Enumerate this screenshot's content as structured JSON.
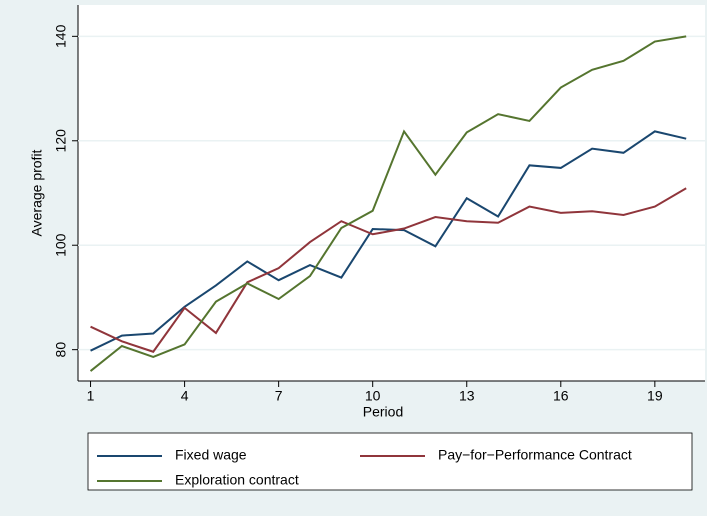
{
  "chart_data": {
    "type": "line",
    "x_label": "Period",
    "y_label": "Average profit",
    "x": [
      1,
      2,
      3,
      4,
      5,
      6,
      7,
      8,
      9,
      10,
      11,
      12,
      13,
      14,
      15,
      16,
      17,
      18,
      19,
      20
    ],
    "xlim": [
      0.6,
      20.6
    ],
    "xticks": [
      1,
      4,
      7,
      10,
      13,
      16,
      19
    ],
    "ylim": [
      74,
      146
    ],
    "yticks": [
      80,
      100,
      120,
      140
    ],
    "grid": true,
    "series": [
      {
        "name": "Fixed wage",
        "color": "#1a476f",
        "values": [
          79.8,
          82.7,
          83.1,
          88.2,
          92.3,
          96.9,
          93.3,
          96.2,
          93.8,
          103.1,
          102.9,
          99.8,
          109.0,
          105.5,
          115.3,
          114.8,
          118.5,
          117.7,
          121.8,
          120.4
        ]
      },
      {
        "name": "Pay−for−Performance Contract",
        "color": "#90353b",
        "values": [
          84.4,
          81.6,
          79.6,
          88.0,
          83.2,
          92.9,
          95.6,
          100.6,
          104.6,
          102.1,
          103.2,
          105.4,
          104.6,
          104.3,
          107.4,
          106.2,
          106.5,
          105.8,
          107.4,
          110.9
        ]
      },
      {
        "name": "Exploration contract",
        "color": "#55752f",
        "values": [
          75.9,
          80.7,
          78.6,
          81.0,
          89.2,
          92.7,
          89.7,
          94.1,
          103.3,
          106.6,
          121.8,
          113.5,
          121.6,
          125.1,
          123.8,
          130.2,
          133.6,
          135.3,
          139.0,
          140.0
        ]
      }
    ]
  }
}
